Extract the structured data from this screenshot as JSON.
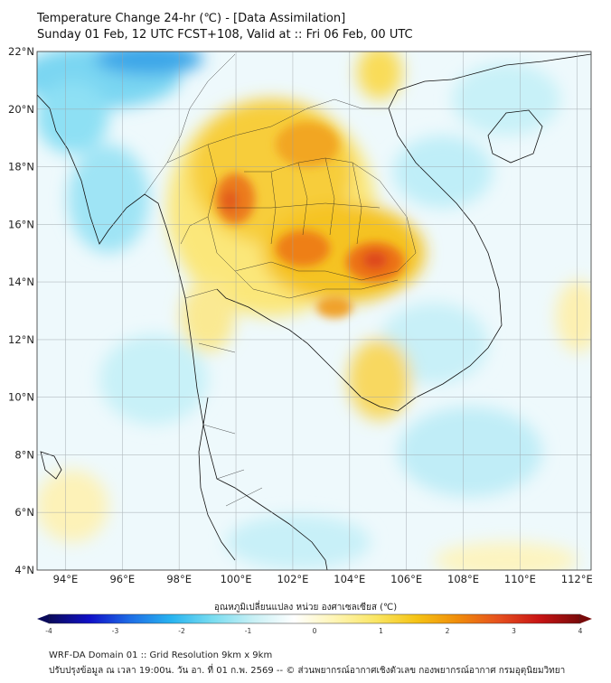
{
  "title": {
    "line1": "Temperature Change 24-hr (℃) - [Data Assimilation]",
    "line2": "Sunday 01 Feb, 12 UTC FCST+108, Valid at :: Fri 06 Feb, 00 UTC"
  },
  "map": {
    "lon_range": [
      93,
      112.5
    ],
    "lat_range": [
      4,
      22
    ],
    "lat_ticks": [
      "22°N",
      "20°N",
      "18°N",
      "16°N",
      "14°N",
      "12°N",
      "10°N",
      "8°N",
      "6°N",
      "4°N"
    ],
    "lon_ticks": [
      "94°E",
      "96°E",
      "98°E",
      "100°E",
      "102°E",
      "104°E",
      "106°E",
      "108°E",
      "110°E",
      "112°E"
    ]
  },
  "colorbar": {
    "label": "อุณหภูมิเปลี่ยนแปลง หน่วย องศาเซลเซียส (℃)",
    "ticks": [
      "-4",
      "-3",
      "-2",
      "-1",
      "0",
      "1",
      "2",
      "3",
      "4"
    ],
    "range": [
      -4,
      4
    ],
    "colors": [
      "#0a0a5a",
      "#1010c8",
      "#1e6ee6",
      "#28b4f0",
      "#78dcf0",
      "#c8f0f5",
      "#ffffff",
      "#fff5b4",
      "#fae664",
      "#f5c314",
      "#f08c0a",
      "#e6501e",
      "#c81414",
      "#780a0a"
    ]
  },
  "footer": {
    "line1": "WRF-DA Domain 01 :: Grid Resolution 9km x 9km",
    "line2": "ปรับปรุงข้อมูล ณ เวลา 19:00น. วัน อา. ที่ 01 ก.พ. 2569 -- © ส่วนพยากรณ์อากาศเชิงตัวเลข กองพยากรณ์อากาศ กรมอุตุนิยมวิทยา"
  }
}
